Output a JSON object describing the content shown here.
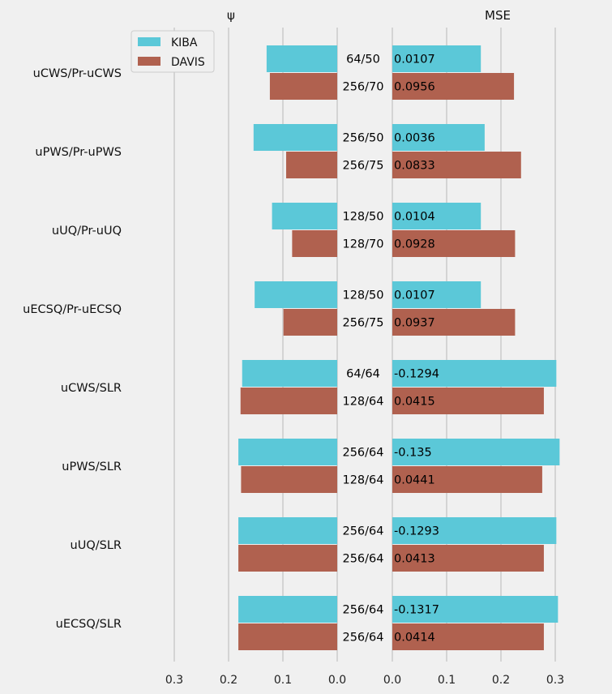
{
  "chart_data": {
    "type": "bar",
    "orientation": "horizontal",
    "categories": [
      "uCWS/Pr-uCWS",
      "uPWS/Pr-uPWS",
      "uUQ/Pr-uUQ",
      "uECSQ/Pr-uECSQ",
      "uCWS/SLR",
      "uPWS/SLR",
      "uUQ/SLR",
      "uECSQ/SLR"
    ],
    "left_panel": {
      "title": "ψ",
      "xlim": [
        0,
        0.3
      ],
      "inverted": true,
      "ticks": [
        "0.3",
        "0.2",
        "0.1",
        "0.0"
      ],
      "series": [
        {
          "name": "KIBA",
          "color": "#5bc8d8",
          "values": [
            0.13,
            0.154,
            0.12,
            0.152,
            0.175,
            0.182,
            0.182,
            0.182
          ]
        },
        {
          "name": "DAVIS",
          "color": "#b0614f",
          "values": [
            0.124,
            0.094,
            0.083,
            0.099,
            0.178,
            0.177,
            0.182,
            0.182
          ]
        }
      ]
    },
    "middle_labels": {
      "KIBA": [
        "64/50",
        "256/50",
        "128/50",
        "128/50",
        "64/64",
        "256/64",
        "256/64",
        "256/64"
      ],
      "DAVIS": [
        "256/70",
        "256/75",
        "128/70",
        "256/75",
        "128/64",
        "128/64",
        "256/64",
        "256/64"
      ]
    },
    "right_panel": {
      "title": "MSE",
      "xlim": [
        0,
        0.3
      ],
      "ticks": [
        "0.0",
        "0.1",
        "0.2",
        "0.3"
      ],
      "series": [
        {
          "name": "KIBA",
          "color": "#5bc8d8",
          "values": [
            0.163,
            0.17,
            0.163,
            0.163,
            0.302,
            0.308,
            0.302,
            0.305
          ],
          "labels": [
            "0.0107",
            "0.0036",
            "0.0104",
            "0.0107",
            "-0.1294",
            "-0.135",
            "-0.1293",
            "-0.1317"
          ]
        },
        {
          "name": "DAVIS",
          "color": "#b0614f",
          "values": [
            0.224,
            0.237,
            0.226,
            0.226,
            0.279,
            0.276,
            0.279,
            0.279
          ],
          "labels": [
            "0.0956",
            "0.0833",
            "0.0928",
            "0.0937",
            "0.0415",
            "0.0441",
            "0.0413",
            "0.0414"
          ]
        }
      ]
    },
    "legend": {
      "position": "top-left",
      "entries": [
        "KIBA",
        "DAVIS"
      ]
    },
    "grid": true
  }
}
